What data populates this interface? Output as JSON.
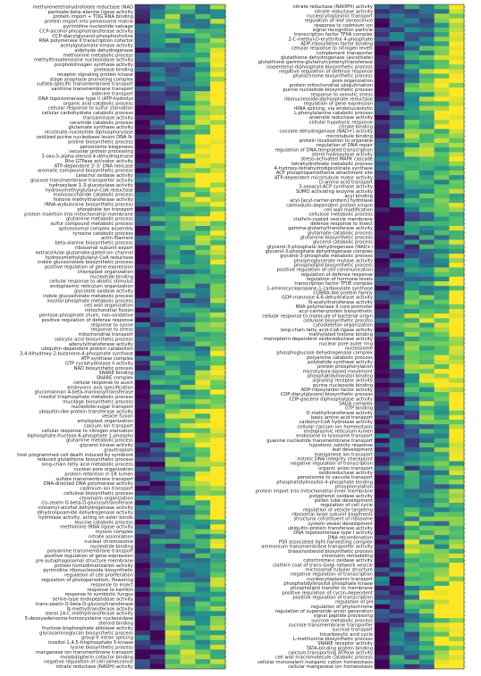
{
  "chart_data": [
    {
      "type": "heatmap",
      "colormap": [
        "#440154",
        "#3b528b",
        "#21908d",
        "#5dc963",
        "#fde725"
      ],
      "columns": 6,
      "value_range": [
        0,
        1
      ],
      "rows": [
        "methylenetetrahydrofolate reductase (NAD",
        "pantoate-beta-alanine ligase activity",
        "protein import + TOG RNA binding",
        "protein import into peroxisome matrix",
        "pyrimidine nucleotide salvage",
        "CCP-alcohol phosphotransferase activity",
        "CCP-diacylglycerol-phosphocholine",
        "RNA polymerase II transcription cofactor",
        "acetylglutamate kinase activity",
        "aldehyde dehydrogenase",
        "methionine metabolic process",
        "methylthioadenosine nucleosidase activity",
        "porphobilinogen synthase activity",
        "protease binding",
        "receptor signaling protein kinase",
        "stage anaphase promoting complex",
        "sulfate-specific transmembrane transport",
        "xanthine transmembrane transport",
        "adenine transport",
        "DNA topoisomerase type II (ATP-hydrolyz",
        "organic acid catabolic process",
        "cellular response to sulfur starvation",
        "cellular carbohydrate catabolic process",
        "transaminase activity",
        "ceramide catabolic process",
        "glutamate synthase activity",
        "nicotinate-nucleotide diphosphorylase",
        "oxidized purine nucleobase lesion DNA N-",
        "proline biosynthetic process",
        "peroxisome biogenesis",
        "vacuolar protein processing",
        "3-oxo-5-alpha-steroid 4-dehydrogenase",
        "Rho GTPase activator activity",
        "ATP-dependent 3'-5' DNA helicase",
        "aromatic compound biosynthetic process",
        "catechol oxidase activity",
        "glucose transmembrane transporter activity",
        "hydroxylase 1-3 glucosylase activity",
        "hydroxymethylglutaryl-CoA reductase",
        "monosaccharide catabolic process",
        "histone methyltransferase activity",
        "tRNA-wybutosine biosynthetic process",
        "phosphate ion transport",
        "protein insertion into mitochondrial membrane",
        "glutamine metabolic process",
        "sulfur compound metabolic process",
        "spliceosomal complex assembly",
        "tyrosine catabolic process",
        "actin filament",
        "beta-alanine biosynthetic process",
        "ribosomal subunit export",
        "extracellular-glutamate-gated ion channel",
        "hydroxymethylglutaryl-CoA reductase",
        "indole glucosinolate biosynthetic process",
        "positive regulation of gene expression",
        "chloroplast organization",
        "nucleotide binding",
        "cellular response to abiotic stimulus",
        "endoplasmic reticulum organization",
        "glycolate oxidase activity",
        "indole glucosinolate metabolic process",
        "inositol phosphate metabolic process",
        "cell wall organization",
        "mitochondrial fission",
        "pentose-phosphate shunt, non-oxidative",
        "positive regulation of defense response",
        "response to ozone",
        "response to stress",
        "mitochondrial transport",
        "salicylic acid biosynthetic process",
        "adenylyltransferase activity",
        "ubiquitin-dependent protein catabolism",
        "3,4-dihydroxy-2-butanone-4-phosphate synthase",
        "ATP synthase complex",
        "GTP cyclohydrolase II activity",
        "NAD biosynthetic process",
        "SNARE binding",
        "SNARE complex",
        "cellular response to auxin",
        "embryonic axis specification",
        "glucomannan 4-beta-mannosyltransferase",
        "inositol trisphosphate metabolic process",
        "mucilage biosynthetic process",
        "nucleotide-sugar transport",
        "ubiquitin-like protein transferase activity",
        "vesicle fusion",
        "amyloplast organization",
        "calcium ion transport",
        "cellular response to nitrogen starvation",
        "diphosphate-fructose-6-phosphate 1-phospho",
        "glutamine metabolic process",
        "glycerol kinase activity",
        "gravitropism",
        "host programmed cell death induced by symbiont",
        "reduced glutathione biosynthetic process",
        "long-chain fatty acid metabolic process",
        "nuclear pore organization",
        "protein retention in ER lumen",
        "sulfate transmembrane transport",
        "DNA-directed DNA polymerase activity",
        "cadmium ion transport",
        "cellulose biosynthetic process",
        "chromatin organization",
        "cis-zeatin O-beta-D-glucosyltransferase",
        "cinnamyl-alcohol dehydrogenase activity",
        "dihydrolipoamide dehydrogenase activity",
        "hydrolase activity, acting on ester bonds",
        "leucine catabolic process",
        "methionine tRNA ligase activity",
        "myosin complex",
        "nitrate assimilation",
        "nuclear chromosome",
        "nucleotide binding",
        "polyamine transmembrane transport",
        "positive regulation of gene expression",
        "pre-autophagosomal structure membrane",
        "protein homodimerization activity",
        "pyrimidine ribonucleoside biosynthetic",
        "regulation of cell proliferation",
        "regulation of photoperiodism, flowering",
        "response to insect",
        "response to karrikin",
        "response to symbiotic fungus",
        "serine-type endopeptidase activity",
        "trans-zeatin O-beta-D-glucosyltransferase",
        "N-methyltransferase activity",
        "sterol 24-C-methyltransferase activity",
        "5-deoxyadenosine-homocysteine nucleosidase",
        "steroid binding",
        "fructose-bisphosphate aldolase activity",
        "glycosaminoglycan biosynthetic process",
        "group II intron splicing",
        "inositol-1,4,5-trisphosphate 5-kinase",
        "lysine biosynthetic process",
        "manganese ion transmembrane transport",
        "molybdopterin cofactor binding",
        "negative regulation of cell senescence",
        "nitrate reductase (NADH) activity"
      ]
    },
    {
      "type": "heatmap",
      "colormap": [
        "#440154",
        "#3b528b",
        "#21908d",
        "#5dc963",
        "#fde725"
      ],
      "columns": 6,
      "value_range": [
        0,
        1
      ],
      "rows": [
        "nitrate reductase (NADPH) activity",
        "nitrate reductase activity",
        "nucleocytoplasmic transport",
        "regulation of leaf senescence",
        "response to cadmium ion",
        "signal recognition particle",
        "transcription factor TFIIA complex",
        "2-C-methyl-D-erythritol 4-phosphate",
        "ADP-ribosylation factor binding",
        "cellular response to nitrogen levels",
        "complement transporter",
        "glutathione dehydrogenase (ascorbate)",
        "glutathione gamma-glutamylcysteinyltransferase",
        "isopentenyl diphosphate biosynthetic process",
        "negative regulation of defense response",
        "phytochrome biosynthetic process",
        "pore organization",
        "protein mitochondrial ubiquitination",
        "purine nucleotide biosynthetic process",
        "response to osmotic stress",
        "ribonucleoside-diphosphate reductase",
        "regulation of gene expression",
        "rRNA splicing, via endonucleolytic",
        "L-phenylalanine catabolic process",
        "arsenate reductase activity",
        "cellular hypotonic response",
        "citrate binding",
        "cocoate dehydrogenase (NAD+) activity",
        "microtubule binding",
        "protein localization to organelle",
        "regulation of DNA repair",
        "regulation of DNA-templated transcription",
        "sterol hydroxylase activity",
        "stress-activated MAPK cascade",
        "tetrahydrofolate metabolic process",
        "4-hydroxy-tetrahydrodipicolinate synthase",
        "ACP phosphopantetheine attachment site",
        "ATP-dependent microtubule motor activity",
        "D-amino acid transport",
        "3-oxoacyl-ACP synthase activity",
        "SUMO activating enzyme activity",
        "acyl binding",
        "acyl-[acyl-carrier-protein] hydrolase",
        "calmodulin-dependent protein kinase",
        "cell wall modification",
        "cellulose metabolic process",
        "clathrin-coated vesicle membrane",
        "defense response to insect",
        "gamma-glutamyltransferase activity",
        "glutamate catabolic process",
        "glutamine biosynthetic process",
        "glycerol catabolic process",
        "glycerol-3-phosphate dehydrogenase (NAD+)",
        "glycerol-3-phosphate dehydrogenase complex",
        "glycerol-3-phosphate metabolic process",
        "phosphoglycerate mutase activity",
        "phospholipid biosynthetic process",
        "positive regulation of cell communication",
        "regulation of defense response",
        "regulation of hormone levels",
        "transcription factor TFIIE complex",
        "1-aminocyclopropane-1-carboxylate synthase",
        "COBRA-like protein family",
        "GDP-mannose 4,6-dehydratase activity",
        "N-acetyltransferase activity",
        "RNA polymerase II core promoter",
        "acyl-carrier-protein biosynthetic",
        "cellular response to molecule of bacterial origin",
        "cellulose biosynthetic process",
        "cytoskeleton organization",
        "long-chain fatty acid-CoA ligase activity",
        "methylated histone binding",
        "monopterin-dependent oxidoreductase activity",
        "nuclear pore outer ring",
        "nucleosome",
        "phosphoglucose dehydrogenase complex",
        "polyamine catabolic process",
        "polyketide synthase activity",
        "protein phosphorylation",
        "microtubule-based movement",
        "phosphatidylinositol binding",
        "signaling receptor activity",
        "purine nucleoside binding",
        "ADP-ribosylation factor activity",
        "CDP-diacylglycerol biosynthetic process",
        "CDP-glycerol diphosphatase activity",
        "SAGA complex",
        "GTP binding",
        "O-methyltransferase activity",
        "basic amino acid transport",
        "carbonyl-CoA hydrolase activity",
        "cellular calcium ion homeostasis",
        "endoplasmic reticulum lumen",
        "endosome to lysosome transport",
        "guanine nucleotide transmembrane transport",
        "hypotonic salinity response",
        "leaf development",
        "manganese ion transport",
        "mitotic DNA integrity checkpoint",
        "negative regulation of transcription",
        "organic anion transport",
        "oxidoreductase activity",
        "peroxisome to vacuole transport",
        "phosphatidylinositol-4-phosphate binding",
        "phosphorylation",
        "protein import into mitochondrial inner membrane",
        "polyphenol oxidase activity",
        "pollen tube development",
        "regulation of cell cycle",
        "regulation of vesicle targeting",
        "ribosomal large subunit biogenesis",
        "structural constituent of ribosome",
        "system vessel development",
        "ubiquitin-protein transferase activity",
        "DNA topoisomerase type I activity",
        "DNA recombination",
        "PSII associated light-harvesting complex",
        "ammonium transmembrane transporter activity",
        "brassinosteroid biosynthetic process",
        "chromatin remodeling",
        "cytochrome-c oxidase activity",
        "clathrin coat of trans-Golgi network vesicle",
        "microsomal tubular structure",
        "negative regulation of transcription",
        "nucleocytoplasmic transport",
        "phosphatidylinositol phosphate kinase",
        "phospholipid transfer to membrane",
        "positive regulation of cyclin-dependent",
        "positive regulation of transcription",
        "regulation of pH",
        "regulation of phytochrome",
        "regulation of superoxide anion generation",
        "signal peptide processing",
        "sucrose metabolic process",
        "sucrose transmembrane transporter",
        "sucrose transport",
        "tricarboxylic acid cycle",
        "L-methionine biosynthetic process",
        "SNARE receptor activity",
        "TATA-binding protein binding",
        "calcium-transporting ATPase activity",
        "cell wall macromolecule catabolic process",
        "cellular monovalent inorganic cation homeostasis",
        "cellular manganese ion homeostasis"
      ]
    }
  ]
}
